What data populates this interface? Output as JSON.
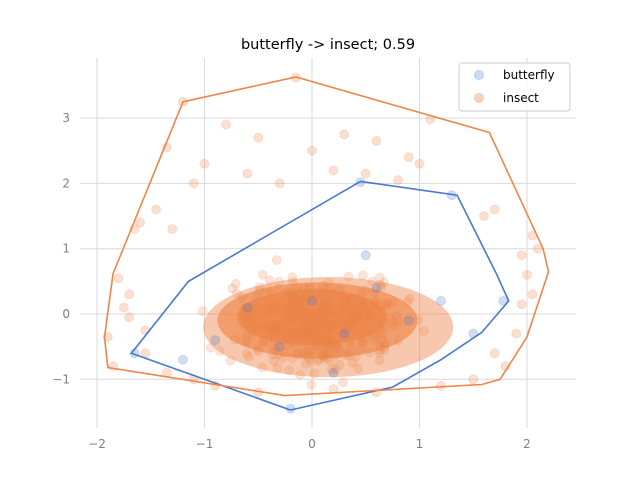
{
  "chart_data": {
    "type": "scatter",
    "title": "butterfly -> insect; 0.59",
    "xlabel": "",
    "ylabel": "",
    "xlim": [
      -2.2,
      2.45
    ],
    "ylim": [
      -1.75,
      3.9
    ],
    "x_ticks": [
      -2,
      -1,
      0,
      1,
      2
    ],
    "y_ticks": [
      -1,
      0,
      1,
      2,
      3
    ],
    "x_tick_labels": [
      "−2",
      "−1",
      "0",
      "1",
      "2"
    ],
    "y_tick_labels": [
      "−1",
      "0",
      "1",
      "2",
      "3"
    ],
    "grid": true,
    "legend_position": "top-right",
    "series": [
      {
        "name": "butterfly",
        "color": "#4878cf",
        "points": [
          [
            -0.9,
            -0.4
          ],
          [
            -0.6,
            0.1
          ],
          [
            -0.3,
            -0.5
          ],
          [
            0.0,
            0.2
          ],
          [
            0.3,
            -0.3
          ],
          [
            0.6,
            0.4
          ],
          [
            0.9,
            -0.1
          ],
          [
            1.2,
            0.2
          ],
          [
            -1.2,
            -0.7
          ],
          [
            0.2,
            -0.9
          ],
          [
            0.5,
            0.9
          ],
          [
            1.5,
            -0.3
          ],
          [
            -0.2,
            -1.45
          ],
          [
            1.78,
            0.2
          ],
          [
            1.3,
            1.82
          ],
          [
            0.45,
            2.02
          ],
          [
            -1.65,
            -0.6
          ]
        ],
        "hull": [
          [
            -0.2,
            -1.47
          ],
          [
            0.75,
            -1.12
          ],
          [
            1.2,
            -0.7
          ],
          [
            1.58,
            -0.28
          ],
          [
            1.83,
            0.2
          ],
          [
            1.72,
            0.6
          ],
          [
            1.35,
            1.82
          ],
          [
            0.45,
            2.03
          ],
          [
            -1.15,
            0.5
          ],
          [
            -1.68,
            -0.6
          ]
        ]
      },
      {
        "name": "insect",
        "color": "#ee854a",
        "points": [
          [
            -1.2,
            3.25
          ],
          [
            -0.15,
            3.62
          ],
          [
            1.1,
            2.98
          ],
          [
            -0.8,
            2.9
          ],
          [
            -0.5,
            2.7
          ],
          [
            0.3,
            2.75
          ],
          [
            0.6,
            2.65
          ],
          [
            -1.35,
            2.55
          ],
          [
            0.0,
            2.5
          ],
          [
            0.9,
            2.4
          ],
          [
            -1.0,
            2.3
          ],
          [
            0.2,
            2.2
          ],
          [
            1.0,
            2.3
          ],
          [
            -0.6,
            2.15
          ],
          [
            0.5,
            2.15
          ],
          [
            -1.1,
            2.0
          ],
          [
            0.8,
            2.05
          ],
          [
            -0.3,
            2.0
          ],
          [
            1.7,
            1.6
          ],
          [
            -1.45,
            1.6
          ],
          [
            1.6,
            1.5
          ],
          [
            -1.65,
            1.3
          ],
          [
            -1.6,
            1.4
          ],
          [
            2.05,
            1.2
          ],
          [
            2.1,
            1.0
          ],
          [
            1.95,
            0.9
          ],
          [
            -1.3,
            1.3
          ],
          [
            2.0,
            0.6
          ],
          [
            -1.8,
            0.55
          ],
          [
            2.05,
            0.3
          ],
          [
            1.95,
            0.15
          ],
          [
            -1.7,
            0.3
          ],
          [
            -1.75,
            0.1
          ],
          [
            -1.7,
            -0.05
          ],
          [
            -1.55,
            -0.25
          ],
          [
            -1.9,
            -0.35
          ],
          [
            -1.85,
            -0.8
          ],
          [
            -1.55,
            -0.6
          ],
          [
            -1.35,
            -0.9
          ],
          [
            -1.1,
            -1.0
          ],
          [
            1.8,
            -0.8
          ],
          [
            1.9,
            -0.3
          ],
          [
            1.7,
            -0.6
          ],
          [
            1.5,
            -1.0
          ],
          [
            1.2,
            -1.1
          ],
          [
            0.6,
            -1.2
          ],
          [
            -0.5,
            -1.2
          ],
          [
            0.2,
            -1.15
          ],
          [
            -0.9,
            -1.1
          ]
        ],
        "hull": [
          [
            -1.2,
            3.25
          ],
          [
            -0.15,
            3.63
          ],
          [
            1.65,
            2.78
          ],
          [
            2.15,
            1.0
          ],
          [
            2.2,
            0.65
          ],
          [
            2.0,
            -0.35
          ],
          [
            1.75,
            -1.0
          ],
          [
            1.58,
            -1.08
          ],
          [
            -0.25,
            -1.25
          ],
          [
            -1.9,
            -0.82
          ],
          [
            -1.93,
            -0.35
          ],
          [
            -1.85,
            0.62
          ]
        ]
      }
    ]
  },
  "legend": {
    "items": [
      {
        "label": "butterfly",
        "color": "#aec7e8"
      },
      {
        "label": "insect",
        "color": "#f5b58a"
      }
    ]
  }
}
